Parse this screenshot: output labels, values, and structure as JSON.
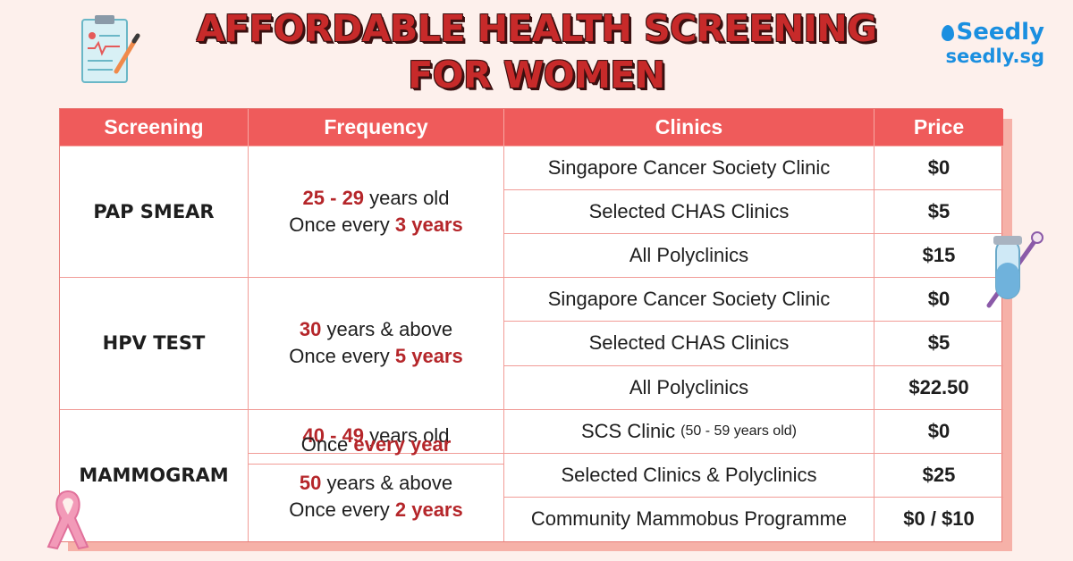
{
  "title": {
    "line1": "AFFORDABLE HEALTH SCREENING",
    "line2": "FOR WOMEN"
  },
  "brand": {
    "name": "Seedly",
    "url": "seedly.sg"
  },
  "table": {
    "headers": [
      "Screening",
      "Frequency",
      "Clinics",
      "Price"
    ],
    "screenings": [
      {
        "name": "PAP SMEAR",
        "frequency": [
          {
            "age_hl": "25 - 29",
            "age_rest": " years old",
            "once": "Once every ",
            "period": "3 years"
          }
        ],
        "clinics": [
          {
            "clinic": "Singapore Cancer Society Clinic",
            "price": "$0"
          },
          {
            "clinic": "Selected CHAS Clinics",
            "price": "$5"
          },
          {
            "clinic": "All Polyclinics",
            "price": "$15"
          }
        ]
      },
      {
        "name": "HPV TEST",
        "frequency": [
          {
            "age_hl": "30",
            "age_rest": " years & above",
            "once": "Once every ",
            "period": "5 years"
          }
        ],
        "clinics": [
          {
            "clinic": "Singapore Cancer Society Clinic",
            "price": "$0"
          },
          {
            "clinic": "Selected CHAS Clinics",
            "price": "$5"
          },
          {
            "clinic": "All Polyclinics",
            "price": "$22.50"
          }
        ]
      },
      {
        "name": "MAMMOGRAM",
        "frequency": [
          {
            "age_hl": "40 - 49",
            "age_rest": " years old",
            "once": "Once ",
            "period": "every year"
          },
          {
            "age_hl": "50",
            "age_rest": " years & above",
            "once": "Once every ",
            "period": "2 years"
          }
        ],
        "clinics": [
          {
            "clinic": "SCS Clinic",
            "note": "(50 - 59 years old)",
            "price": "$0"
          },
          {
            "clinic": "Selected Clinics & Polyclinics",
            "price": "$25"
          },
          {
            "clinic": "Community Mammobus Programme",
            "price": "$0 / $10"
          }
        ]
      }
    ]
  },
  "icons": [
    "clipboard-icon",
    "test-tube-icon",
    "pink-ribbon-icon",
    "seedly-drop-icon"
  ],
  "colors": {
    "header": "#ef5b5b",
    "highlight": "#b5262a",
    "title": "#c72a2a",
    "brand": "#1a8fe0",
    "background": "#fdf0ec"
  }
}
